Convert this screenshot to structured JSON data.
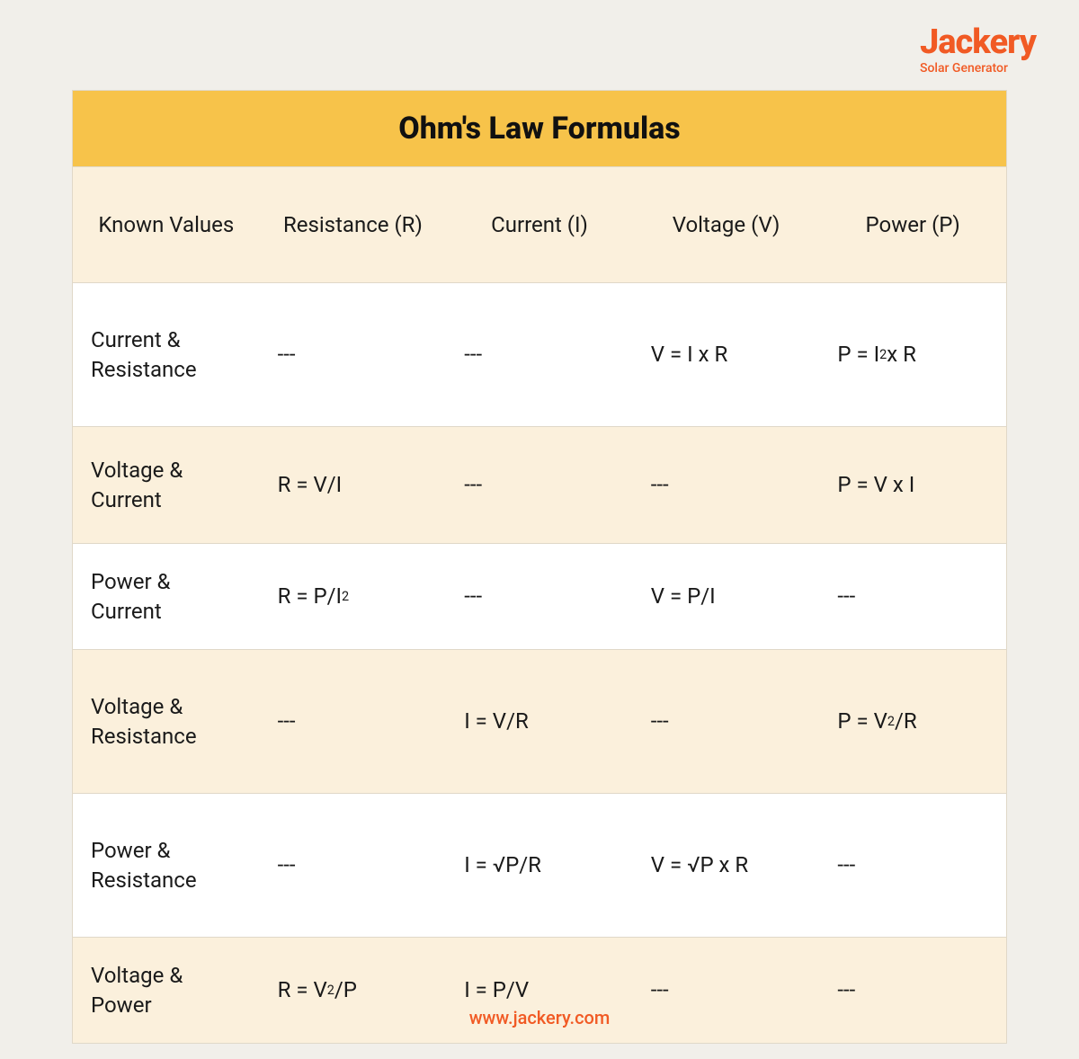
{
  "brand": {
    "name": "Jackery",
    "tagline": "Solar Generator",
    "color": "#f15a24"
  },
  "table": {
    "title": "Ohm's Law Formulas",
    "title_bg": "#f7c34a",
    "header_bg": "#fbf0dc",
    "alt_row_bg": "#fbf0dc",
    "plain_row_bg": "#ffffff",
    "border_color": "#e0d8c8",
    "columns": [
      "Known Values",
      "Resistance (R)",
      "Current (I)",
      "Voltage (V)",
      "Power (P)"
    ],
    "rows": [
      {
        "height": "lg",
        "bg": "plain",
        "cells": [
          "Current & Resistance",
          "---",
          "---",
          "V = I x R",
          "P = I<sup>2</sup> x R"
        ]
      },
      {
        "height": "md",
        "bg": "alt",
        "cells": [
          "Voltage & Current",
          "R = V/I",
          "---",
          "---",
          "P = V x I"
        ]
      },
      {
        "height": "sm",
        "bg": "plain",
        "cells": [
          "Power & Current",
          "R = P/I<sup>2</sup>",
          "---",
          "V = P/I",
          "---"
        ]
      },
      {
        "height": "lg",
        "bg": "alt",
        "cells": [
          "Voltage & Resistance",
          "---",
          "I = V/R",
          "---",
          "P = V<sup>2</sup>/R"
        ]
      },
      {
        "height": "lg",
        "bg": "plain",
        "cells": [
          "Power & Resistance",
          "---",
          "I = √P/R",
          "V = √P x R",
          "---"
        ]
      },
      {
        "height": "sm",
        "bg": "alt",
        "cells": [
          "Voltage & Power",
          "R = V<sup>2</sup>/P",
          "I = P/V",
          "---",
          "---"
        ]
      }
    ]
  },
  "footer": {
    "url": "www.jackery.com"
  },
  "page_bg": "#f1efea"
}
